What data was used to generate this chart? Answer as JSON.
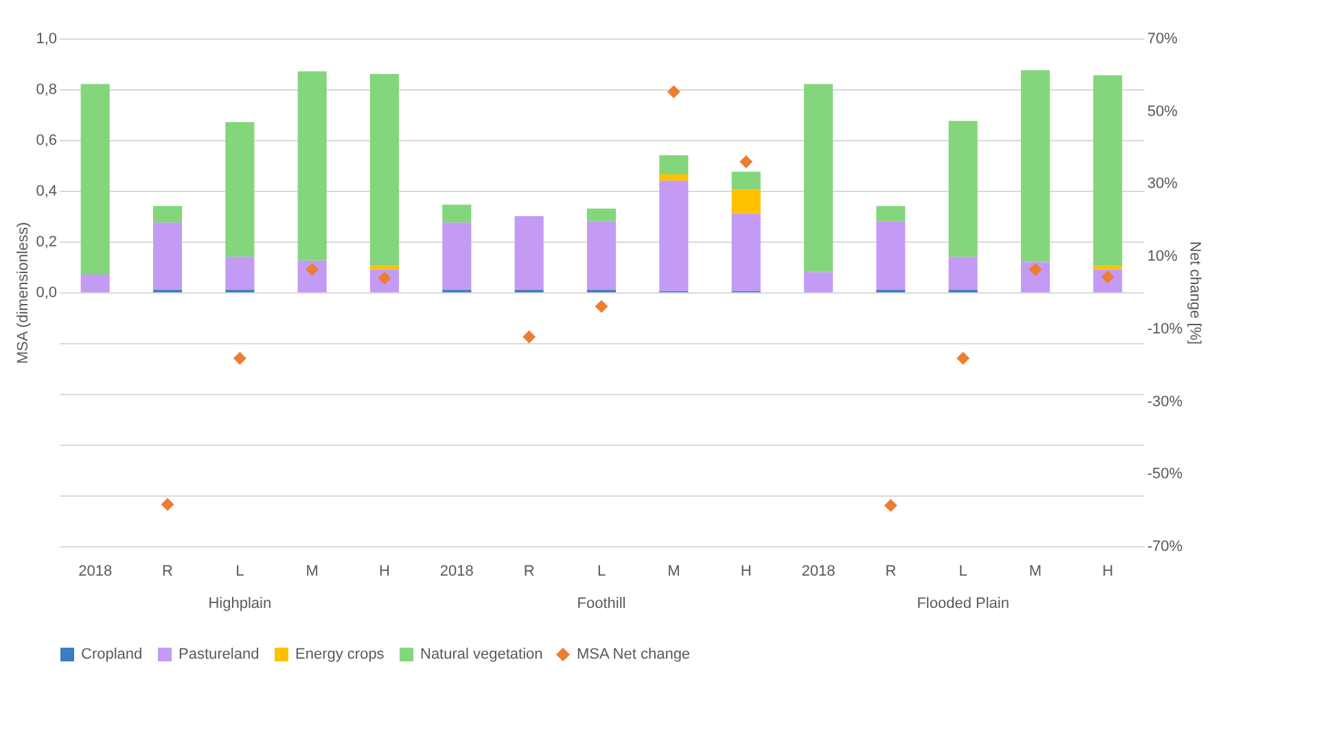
{
  "chart_data": {
    "type": "bar",
    "stacked": true,
    "ylabel": "MSA (dimensionless)",
    "y2label": "Net change [%]",
    "categories": [
      "2018",
      "R",
      "L",
      "M",
      "H",
      "2018",
      "R",
      "L",
      "M",
      "H",
      "2018",
      "R",
      "L",
      "M",
      "H"
    ],
    "annotations": [
      "Highplain",
      "Foothill",
      "Flooded Plain"
    ],
    "ylim": [
      -1,
      1
    ],
    "yticks": [
      {
        "value": -1,
        "label": null
      },
      {
        "value": -0.8,
        "label": null
      },
      {
        "value": -0.6,
        "label": null
      },
      {
        "value": -0.4,
        "label": null
      },
      {
        "value": -0.2,
        "label": null
      },
      {
        "value": 0,
        "label": "0,0"
      },
      {
        "value": 0.2,
        "label": "0,2"
      },
      {
        "value": 0.4,
        "label": "0,4"
      },
      {
        "value": 0.6,
        "label": "0,6"
      },
      {
        "value": 0.8,
        "label": "0,8"
      },
      {
        "value": 1,
        "label": "1,0"
      }
    ],
    "y2lim": [
      -70,
      70
    ],
    "y2ticks": [
      {
        "value": -70,
        "label": "-70%"
      },
      {
        "value": -50,
        "label": "-50%"
      },
      {
        "value": -30,
        "label": "-30%"
      },
      {
        "value": -10,
        "label": "-10%"
      },
      {
        "value": 10,
        "label": "10%"
      },
      {
        "value": 30,
        "label": "30%"
      },
      {
        "value": 50,
        "label": "50%"
      },
      {
        "value": 70,
        "label": "70%"
      }
    ],
    "grid": "y",
    "legend": "bottom",
    "series": [
      {
        "name": "Cropland",
        "color": "#3a7dc0",
        "values": [
          0,
          0.01,
          0.01,
          0,
          0,
          0.01,
          0.01,
          0.01,
          0.005,
          0.005,
          0,
          0.01,
          0.01,
          0,
          0
        ]
      },
      {
        "name": "Pastureland",
        "color": "#c39bf5",
        "values": [
          0.07,
          0.265,
          0.13,
          0.125,
          0.09,
          0.265,
          0.29,
          0.27,
          0.435,
          0.305,
          0.08,
          0.27,
          0.13,
          0.12,
          0.09
        ]
      },
      {
        "name": "Energy crops",
        "color": "#ffc000",
        "values": [
          0,
          0,
          0,
          0,
          0.015,
          0,
          0,
          0,
          0.025,
          0.095,
          0,
          0,
          0,
          0,
          0.015
        ]
      },
      {
        "name": "Natural vegetation",
        "color": "#84d67c",
        "values": [
          0.75,
          0.065,
          0.53,
          0.745,
          0.755,
          0.07,
          0,
          0.05,
          0.075,
          0.07,
          0.74,
          0.06,
          0.535,
          0.755,
          0.75
        ]
      },
      {
        "name": "MSA Net change",
        "type": "scatter",
        "axis": "y2",
        "marker": "diamond",
        "color": "#ed7d31",
        "values": [
          null,
          -58.5,
          -18.2,
          6.3,
          3.9,
          null,
          -12.3,
          -3.9,
          55.3,
          36,
          null,
          -58.8,
          -18.2,
          6.3,
          4.2
        ]
      }
    ]
  }
}
